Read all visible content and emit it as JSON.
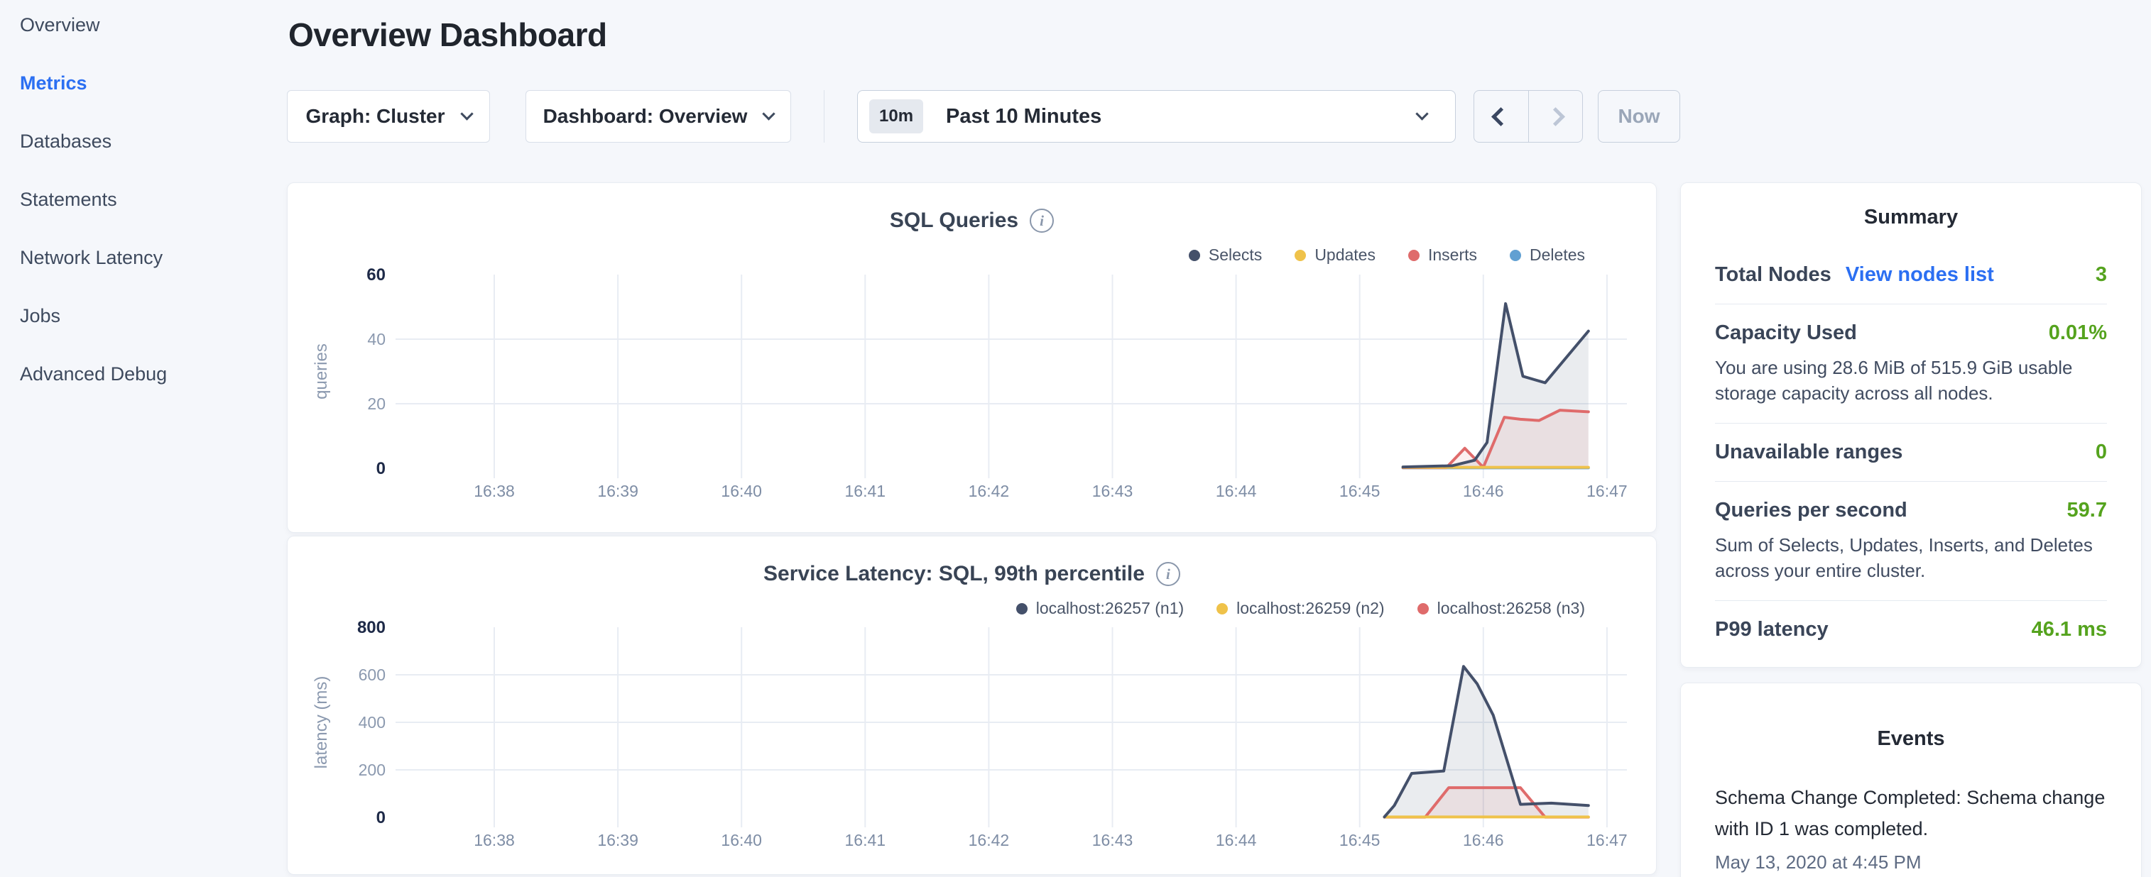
{
  "header": {
    "title": "Overview Dashboard"
  },
  "sidebar": {
    "items": [
      {
        "label": "Overview",
        "active": false
      },
      {
        "label": "Metrics",
        "active": true
      },
      {
        "label": "Databases",
        "active": false
      },
      {
        "label": "Statements",
        "active": false
      },
      {
        "label": "Network Latency",
        "active": false
      },
      {
        "label": "Jobs",
        "active": false
      },
      {
        "label": "Advanced Debug",
        "active": false
      }
    ]
  },
  "controls": {
    "graph_label": "Graph: Cluster",
    "dashboard_label": "Dashboard: Overview",
    "time_badge": "10m",
    "time_label": "Past 10 Minutes",
    "prev_icon": "chevron-left",
    "next_icon": "chevron-right",
    "now_label": "Now"
  },
  "colors": {
    "accent_blue": "#2b6ff2",
    "green": "#55a31e",
    "navy_series": "#44506a",
    "yellow_series": "#efc24a",
    "red_series": "#df6b6b",
    "blue_series": "#61a0d2",
    "page_bg": "#f5f7fb"
  },
  "chart_data": [
    {
      "type": "area",
      "title": "SQL Queries",
      "ylabel": "queries",
      "xlabel": "",
      "x_ticks": [
        "16:38",
        "16:39",
        "16:40",
        "16:41",
        "16:42",
        "16:43",
        "16:44",
        "16:45",
        "16:46",
        "16:47"
      ],
      "y_ticks": [
        0,
        20,
        40,
        60
      ],
      "ylim": [
        0,
        60
      ],
      "grid_y": [
        20,
        40
      ],
      "legend_position": "top-right",
      "series": [
        {
          "name": "Selects",
          "color": "#44506a",
          "fill": "rgba(68,80,106,0.11)",
          "points": [
            [
              8.35,
              0.4
            ],
            [
              8.75,
              0.8
            ],
            [
              8.93,
              2.5
            ],
            [
              9.03,
              8
            ],
            [
              9.18,
              51
            ],
            [
              9.32,
              28.5
            ],
            [
              9.5,
              26.5
            ],
            [
              9.85,
              42.5
            ]
          ]
        },
        {
          "name": "Updates",
          "color": "#efc24a",
          "fill": "none",
          "points": [
            [
              8.35,
              0.3
            ],
            [
              9.85,
              0.3
            ]
          ]
        },
        {
          "name": "Inserts",
          "color": "#df6b6b",
          "fill": "rgba(223,107,107,0.10)",
          "points": [
            [
              8.35,
              0.2
            ],
            [
              8.7,
              0.2
            ],
            [
              8.85,
              6.2
            ],
            [
              9.0,
              0.3
            ],
            [
              9.17,
              15.8
            ],
            [
              9.3,
              15.2
            ],
            [
              9.45,
              14.8
            ],
            [
              9.62,
              18
            ],
            [
              9.85,
              17.5
            ]
          ]
        },
        {
          "name": "Deletes",
          "color": "#61a0d2",
          "fill": "none",
          "points": [
            [
              8.35,
              0.15
            ],
            [
              9.85,
              0.15
            ]
          ]
        }
      ]
    },
    {
      "type": "area",
      "title": "Service Latency: SQL, 99th percentile",
      "ylabel": "latency (ms)",
      "xlabel": "",
      "x_ticks": [
        "16:38",
        "16:39",
        "16:40",
        "16:41",
        "16:42",
        "16:43",
        "16:44",
        "16:45",
        "16:46",
        "16:47"
      ],
      "y_ticks": [
        0,
        200,
        400,
        600,
        800
      ],
      "ylim": [
        0,
        800
      ],
      "grid_y": [
        200,
        400,
        600
      ],
      "legend_position": "top-right",
      "series": [
        {
          "name": "localhost:26257 (n1)",
          "color": "#44506a",
          "fill": "rgba(68,80,106,0.11)",
          "points": [
            [
              8.2,
              2
            ],
            [
              8.28,
              50
            ],
            [
              8.42,
              185
            ],
            [
              8.68,
              195
            ],
            [
              8.84,
              635
            ],
            [
              8.95,
              562
            ],
            [
              9.08,
              430
            ],
            [
              9.3,
              55
            ],
            [
              9.55,
              60
            ],
            [
              9.85,
              50
            ]
          ]
        },
        {
          "name": "localhost:26259 (n2)",
          "color": "#efc24a",
          "fill": "none",
          "points": [
            [
              8.2,
              2
            ],
            [
              9.85,
              2
            ]
          ]
        },
        {
          "name": "localhost:26258 (n3)",
          "color": "#df6b6b",
          "fill": "rgba(223,107,107,0.10)",
          "points": [
            [
              8.2,
              1
            ],
            [
              8.53,
              1
            ],
            [
              8.72,
              125
            ],
            [
              9.3,
              125
            ],
            [
              9.5,
              1
            ],
            [
              9.85,
              1
            ]
          ]
        }
      ]
    }
  ],
  "summary": {
    "title": "Summary",
    "rows": [
      {
        "label": "Total Nodes",
        "link": "View nodes list",
        "value": "3"
      },
      {
        "label": "Capacity Used",
        "value": "0.01%",
        "desc": "You are using 28.6 MiB of 515.9 GiB usable storage capacity across all nodes."
      },
      {
        "label": "Unavailable ranges",
        "value": "0"
      },
      {
        "label": "Queries per second",
        "value": "59.7",
        "desc": "Sum of Selects, Updates, Inserts, and Deletes across your entire cluster."
      },
      {
        "label": "P99 latency",
        "value": "46.1 ms"
      }
    ]
  },
  "events": {
    "title": "Events",
    "items": [
      {
        "text": "Schema Change Completed: Schema change with ID 1 was completed.",
        "time": "May 13, 2020 at 4:45 PM"
      }
    ]
  }
}
